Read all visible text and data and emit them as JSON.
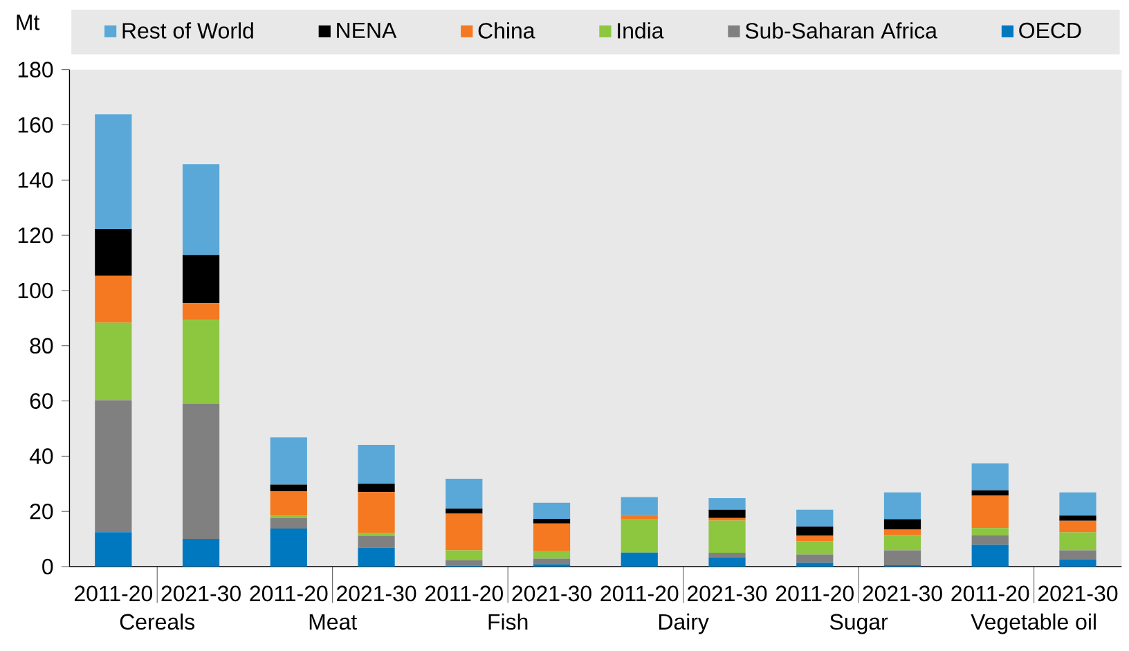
{
  "chart_data": {
    "type": "bar",
    "stacked": true,
    "ylabel": "Mt",
    "categories": [
      "2011-20",
      "2021-30",
      "2011-20",
      "2021-30",
      "2011-20",
      "2021-30",
      "2011-20",
      "2021-30",
      "2011-20",
      "2021-30",
      "2011-20",
      "2021-30"
    ],
    "annotations": [
      "Cereals",
      "Meat",
      "Fish",
      "Dairy",
      "Sugar",
      "Vegetable oil"
    ],
    "series": [
      {
        "name": "OECD",
        "color": "#0078c0",
        "values": [
          12.5,
          10,
          13.8,
          6.9,
          0.3,
          0.8,
          5.1,
          3.4,
          1.4,
          0.5,
          7.9,
          2.5
        ]
      },
      {
        "name": "Sub-Saharan Africa",
        "color": "#808080",
        "values": [
          47.8,
          49,
          3.8,
          4.1,
          2.0,
          2.1,
          0,
          1.6,
          3.0,
          5.4,
          3.4,
          3.4
        ]
      },
      {
        "name": "India",
        "color": "#8dc63f",
        "values": [
          28,
          30.4,
          0.9,
          1.2,
          3.6,
          2.7,
          12.0,
          11.7,
          4.8,
          5.6,
          2.7,
          6.5
        ]
      },
      {
        "name": "China",
        "color": "#f47920",
        "values": [
          17,
          6,
          8.8,
          14.8,
          13.3,
          10,
          1.6,
          0.9,
          2.1,
          1.9,
          11.7,
          4.2
        ]
      },
      {
        "name": "NENA",
        "color": "#000000",
        "values": [
          17,
          17.4,
          2.4,
          3,
          1.8,
          1.7,
          0,
          3.0,
          3.2,
          3.8,
          1.9,
          1.9
        ]
      },
      {
        "name": "Rest of World",
        "color": "#5aa8d8",
        "values": [
          41.5,
          33,
          17.1,
          14.1,
          10.8,
          5.8,
          6.5,
          4.2,
          6.1,
          9.7,
          9.8,
          8.4
        ]
      }
    ],
    "ylim": [
      0,
      180
    ],
    "yticks": [
      0,
      20,
      40,
      60,
      80,
      100,
      120,
      140,
      160,
      180
    ],
    "legend": "top"
  }
}
